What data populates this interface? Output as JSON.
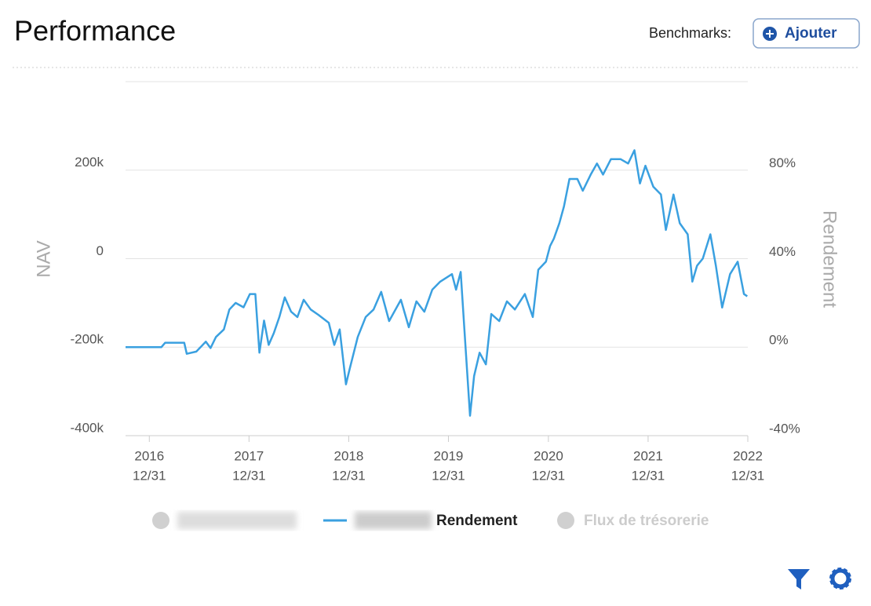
{
  "header": {
    "title": "Performance",
    "benchmarks_label": "Benchmarks:",
    "add_button": "Ajouter"
  },
  "chart_data": {
    "type": "line",
    "y_label": "NAV",
    "y2_label": "Rendement",
    "x": [
      "2016-10-05",
      "2017-02-13",
      "2017-02-27",
      "2017-05-08",
      "2017-05-17",
      "2017-06-21",
      "2017-07-26",
      "2017-08-12",
      "2017-09-01",
      "2017-09-30",
      "2017-10-20",
      "2017-11-12",
      "2017-12-11",
      "2018-01-03",
      "2018-01-23",
      "2018-02-07",
      "2018-02-24",
      "2018-03-13",
      "2018-04-01",
      "2018-04-21",
      "2018-05-11",
      "2018-06-03",
      "2018-06-26",
      "2018-07-19",
      "2018-08-14",
      "2018-09-11",
      "2018-10-19",
      "2018-11-08",
      "2018-11-28",
      "2018-12-21",
      "2019-01-04",
      "2019-02-02",
      "2019-03-03",
      "2019-04-01",
      "2019-04-29",
      "2019-05-28",
      "2019-07-10",
      "2019-08-08",
      "2019-09-05",
      "2019-10-04",
      "2019-11-02",
      "2019-12-01",
      "2020-01-13",
      "2020-01-28",
      "2020-02-14",
      "2020-03-02",
      "2020-03-19",
      "2020-04-03",
      "2020-04-23",
      "2020-05-16",
      "2020-06-05",
      "2020-07-04",
      "2020-08-01",
      "2020-08-30",
      "2020-10-06",
      "2020-11-04",
      "2020-11-24",
      "2020-12-22",
      "2021-01-06",
      "2021-01-20",
      "2021-02-09",
      "2021-02-26",
      "2021-03-18",
      "2021-04-16",
      "2021-05-06",
      "2021-06-04",
      "2021-06-27",
      "2021-07-19",
      "2021-08-17",
      "2021-09-21",
      "2021-10-19",
      "2021-11-11",
      "2021-12-01",
      "2021-12-21",
      "2022-01-19",
      "2022-02-16",
      "2022-03-06",
      "2022-04-03",
      "2022-04-26",
      "2022-05-25",
      "2022-06-11",
      "2022-06-28",
      "2022-07-19",
      "2022-08-16",
      "2022-09-05",
      "2022-09-28",
      "2022-10-27",
      "2022-11-24",
      "2022-12-17",
      "2022-12-29"
    ],
    "series": [
      {
        "name": "Rendement",
        "color": "#3aa0e0",
        "axis": "y2",
        "values": [
          0,
          0,
          2,
          2,
          -3,
          -2,
          2.5,
          -0.4,
          4.6,
          8,
          17,
          20,
          18,
          24,
          24,
          -2.5,
          12,
          1,
          6.4,
          13.6,
          22.5,
          16,
          13.6,
          21.4,
          17,
          14.6,
          11,
          1,
          8,
          -16.8,
          -9.6,
          4.6,
          13.6,
          17,
          25,
          11.8,
          21.4,
          9,
          20.7,
          16,
          26,
          29.6,
          33,
          26,
          34,
          1,
          -31,
          -13,
          -2.5,
          -7.8,
          15,
          11.8,
          20.7,
          17,
          24,
          13.6,
          35,
          38.6,
          45.7,
          49,
          56,
          63.6,
          76,
          76,
          70.7,
          78,
          83,
          78,
          85,
          85,
          83,
          89,
          74,
          82,
          72.5,
          69,
          53,
          69,
          56,
          51,
          29.6,
          36.8,
          40,
          51,
          36.8,
          17.9,
          33,
          38.6,
          24,
          23
        ]
      }
    ],
    "inactive_legend": [
      "Flux de trésorerie"
    ],
    "xlim": [
      "2016-10-05",
      "2022-12-31"
    ],
    "xticks": [
      {
        "value": "2016-12-31",
        "label": [
          "2016",
          "12/31"
        ]
      },
      {
        "value": "2017-12-31",
        "label": [
          "2017",
          "12/31"
        ]
      },
      {
        "value": "2018-12-31",
        "label": [
          "2018",
          "12/31"
        ]
      },
      {
        "value": "2019-12-31",
        "label": [
          "2019",
          "12/31"
        ]
      },
      {
        "value": "2020-12-31",
        "label": [
          "2020",
          "12/31"
        ]
      },
      {
        "value": "2021-12-31",
        "label": [
          "2021",
          "12/31"
        ]
      },
      {
        "value": "2022-12-31",
        "label": [
          "2022",
          "12/31"
        ]
      }
    ],
    "ylim": [
      -400000,
      400000
    ],
    "yticks": [
      {
        "value": -400000,
        "label": "-400k"
      },
      {
        "value": -200000,
        "label": "-200k"
      },
      0,
      {
        "value": 200000,
        "label": "200k"
      }
    ],
    "y2lim": [
      -40,
      120
    ],
    "y2ticks": [
      {
        "value": -40,
        "label": "-40%"
      },
      {
        "value": 0,
        "label": "0%"
      },
      {
        "value": 40,
        "label": "40%"
      },
      {
        "value": 80,
        "label": "80%"
      }
    ],
    "grid": true
  }
}
